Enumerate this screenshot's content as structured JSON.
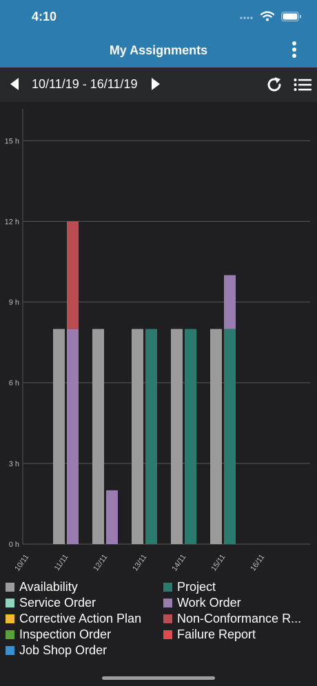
{
  "status": {
    "time": "4:10"
  },
  "header": {
    "title": "My Assignments"
  },
  "nav": {
    "range": "10/11/19 - 16/11/19"
  },
  "icons": {
    "prev": "triangle-left-icon",
    "next": "triangle-right-icon",
    "refresh": "refresh-icon",
    "list": "list-icon",
    "menu": "kebab-menu-icon"
  },
  "colors": {
    "header": "#2c7cb0",
    "availability": "#9b9b9b",
    "service_order": "#8fd3c1",
    "corrective_action_plan": "#f2b932",
    "inspection_order": "#58a13b",
    "job_shop_order": "#3c8fd0",
    "project": "#2b7a6e",
    "work_order": "#9a7db0",
    "non_conformance_report": "#b94d50",
    "failure_report": "#e04a4d"
  },
  "legend": {
    "left": [
      "Availability",
      "Service Order",
      "Corrective Action Plan",
      "Inspection Order",
      "Job Shop Order"
    ],
    "right": [
      "Project",
      "Work Order",
      "Non-Conformance R...",
      "Failure Report"
    ]
  },
  "chart_data": {
    "type": "bar",
    "categories": [
      "10/11",
      "11/11",
      "12/11",
      "13/11",
      "14/11",
      "15/11",
      "16/11"
    ],
    "y_ticks": [
      "0 h",
      "3 h",
      "6 h",
      "9 h",
      "12 h",
      "15 h"
    ],
    "ylim": [
      0,
      17.5
    ],
    "grid": true,
    "series": [
      {
        "name": "Availability",
        "color_key": "availability",
        "stack": "availability",
        "values": [
          0,
          8,
          8,
          8,
          8,
          8,
          0
        ]
      },
      {
        "name": "Project",
        "color_key": "project",
        "stack": "assigned",
        "values": [
          0,
          0,
          0,
          8,
          8,
          8,
          0
        ]
      },
      {
        "name": "Work Order",
        "color_key": "work_order",
        "stack": "assigned",
        "values": [
          0,
          8,
          2,
          0,
          0,
          2,
          0
        ]
      },
      {
        "name": "Non-Conformance R...",
        "color_key": "non_conformance_report",
        "stack": "assigned",
        "values": [
          0,
          4,
          0,
          0,
          0,
          0,
          0
        ]
      }
    ]
  }
}
